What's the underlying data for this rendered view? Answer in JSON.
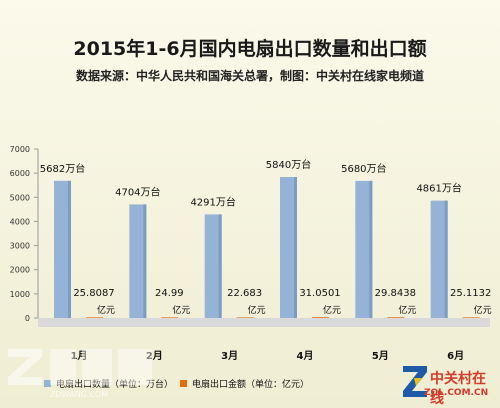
{
  "title": "2015年1-6月国内电扇出口数量和出口额",
  "subtitle": "数据来源：中华人民共和国海关总署，制图：中关村在线家电频道",
  "chart_data": {
    "type": "bar",
    "categories": [
      "1月",
      "2月",
      "3月",
      "4月",
      "5月",
      "6月"
    ],
    "series": [
      {
        "name": "电扇出口数量（单位：万台）",
        "color": "#95b3d7",
        "values": [
          5682,
          4704,
          4291,
          5840,
          5680,
          4861
        ],
        "labels": [
          "5682万台",
          "4704万台",
          "4291万台",
          "5840万台",
          "5680万台",
          "4861万台"
        ]
      },
      {
        "name": "电扇出口金额（单位：亿元）",
        "color": "#e46c0a",
        "values": [
          25.8087,
          24.99,
          22.683,
          31.0501,
          29.8438,
          25.1132
        ],
        "labels": [
          "25.8087",
          "24.99",
          "22.683",
          "31.0501",
          "29.8438",
          "25.1132"
        ],
        "unit": "亿元"
      }
    ],
    "ylim": [
      0,
      7000
    ],
    "yticks": [
      0,
      1000,
      2000,
      3000,
      4000,
      5000,
      6000,
      7000
    ],
    "grid": false,
    "legend": "bottom"
  },
  "watermark_left": {
    "text": "ZDWANG.COM"
  },
  "watermark_right": {
    "name": "中关村在线",
    "url": "ZOL.COM.CN"
  }
}
